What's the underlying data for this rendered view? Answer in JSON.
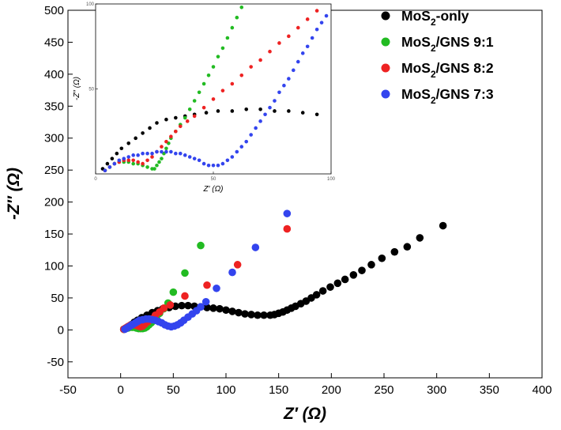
{
  "chart_data": [
    {
      "type": "scatter",
      "xlabel": "Z′ (Ω)",
      "ylabel": "-Z″ (Ω)",
      "xlim": [
        -50,
        400
      ],
      "ylim": [
        -75,
        500
      ],
      "xticks": [
        "-50",
        "0",
        "50",
        "100",
        "150",
        "200",
        "250",
        "300",
        "350",
        "400"
      ],
      "yticks": [
        "-50",
        "0",
        "50",
        "100",
        "150",
        "200",
        "250",
        "300",
        "350",
        "400",
        "450",
        "500"
      ],
      "legend_position": "top-right",
      "series": [
        {
          "name": "MoS2-only",
          "label_main": "MoS",
          "label_sub": "2",
          "label_rest": "-only",
          "color": "#000000",
          "points": [
            [
              3,
              1
            ],
            [
              5,
              3
            ],
            [
              7,
              5
            ],
            [
              10,
              8
            ],
            [
              13,
              12
            ],
            [
              16,
              15
            ],
            [
              20,
              19
            ],
            [
              25,
              23
            ],
            [
              30,
              27
            ],
            [
              35,
              30
            ],
            [
              40,
              33
            ],
            [
              46,
              35
            ],
            [
              52,
              37
            ],
            [
              58,
              38
            ],
            [
              64,
              38
            ],
            [
              70,
              37
            ],
            [
              76,
              36
            ],
            [
              82,
              35
            ],
            [
              88,
              34
            ],
            [
              94,
              33
            ],
            [
              100,
              31
            ],
            [
              106,
              29
            ],
            [
              112,
              27
            ],
            [
              118,
              25
            ],
            [
              124,
              24
            ],
            [
              130,
              23
            ],
            [
              136,
              23
            ],
            [
              142,
              23
            ],
            [
              146,
              24
            ],
            [
              150,
              26
            ],
            [
              154,
              28
            ],
            [
              158,
              31
            ],
            [
              162,
              34
            ],
            [
              166,
              37
            ],
            [
              171,
              41
            ],
            [
              176,
              45
            ],
            [
              181,
              50
            ],
            [
              186,
              55
            ],
            [
              192,
              61
            ],
            [
              199,
              67
            ],
            [
              206,
              73
            ],
            [
              213,
              79
            ],
            [
              221,
              86
            ],
            [
              229,
              93
            ],
            [
              238,
              102
            ],
            [
              248,
              112
            ],
            [
              260,
              122
            ],
            [
              272,
              130
            ],
            [
              284,
              144
            ],
            [
              306,
              163
            ]
          ]
        },
        {
          "name": "MoS2/GNS 9:1",
          "label_main": "MoS",
          "label_sub": "2",
          "label_rest": "/GNS 9:1",
          "color": "#22bb22",
          "points": [
            [
              3,
              1
            ],
            [
              5,
              2
            ],
            [
              7,
              3
            ],
            [
              9,
              4
            ],
            [
              11,
              4
            ],
            [
              13,
              4
            ],
            [
              15,
              3
            ],
            [
              17,
              2
            ],
            [
              19,
              2
            ],
            [
              21,
              2
            ],
            [
              23,
              3
            ],
            [
              25,
              5
            ],
            [
              27,
              8
            ],
            [
              29,
              11
            ],
            [
              31,
              14
            ],
            [
              34,
              19
            ],
            [
              37,
              26
            ],
            [
              41,
              33
            ],
            [
              45,
              42
            ],
            [
              50,
              59
            ],
            [
              61,
              89
            ],
            [
              76,
              132
            ]
          ]
        },
        {
          "name": "MoS2/GNS 8:2",
          "label_main": "MoS",
          "label_sub": "2",
          "label_rest": "/GNS 8:2",
          "color": "#ee2222",
          "points": [
            [
              3,
              1
            ],
            [
              5,
              3
            ],
            [
              7,
              5
            ],
            [
              9,
              7
            ],
            [
              11,
              8
            ],
            [
              13,
              8
            ],
            [
              15,
              7
            ],
            [
              17,
              6
            ],
            [
              19,
              5
            ],
            [
              21,
              6
            ],
            [
              23,
              9
            ],
            [
              26,
              13
            ],
            [
              29,
              17
            ],
            [
              33,
              23
            ],
            [
              37,
              28
            ],
            [
              41,
              34
            ],
            [
              47,
              39
            ],
            [
              61,
              53
            ],
            [
              82,
              70
            ],
            [
              111,
              102
            ],
            [
              158,
              158
            ]
          ]
        },
        {
          "name": "MoS2/GNS 7:3",
          "label_main": "MoS",
          "label_sub": "2",
          "label_rest": "/GNS 7:3",
          "color": "#3344ee",
          "points": [
            [
              4,
              1
            ],
            [
              6,
              3
            ],
            [
              8,
              5
            ],
            [
              10,
              7
            ],
            [
              12,
              9
            ],
            [
              14,
              11
            ],
            [
              16,
              13
            ],
            [
              18,
              15
            ],
            [
              21,
              16
            ],
            [
              24,
              17
            ],
            [
              27,
              17
            ],
            [
              30,
              16
            ],
            [
              33,
              15
            ],
            [
              36,
              13
            ],
            [
              39,
              11
            ],
            [
              42,
              8
            ],
            [
              45,
              6
            ],
            [
              48,
              5
            ],
            [
              51,
              6
            ],
            [
              54,
              8
            ],
            [
              57,
              11
            ],
            [
              60,
              15
            ],
            [
              64,
              20
            ],
            [
              68,
              25
            ],
            [
              72,
              30
            ],
            [
              76,
              36
            ],
            [
              81,
              44
            ],
            [
              91,
              65
            ],
            [
              106,
              90
            ],
            [
              128,
              129
            ],
            [
              158,
              182
            ]
          ]
        }
      ]
    },
    {
      "type": "scatter",
      "xlabel": "Z′ (Ω)",
      "ylabel": "-Z″ (Ω)",
      "xlim": [
        0,
        100
      ],
      "ylim": [
        0,
        100
      ],
      "xticks": [
        "0",
        "50",
        "100"
      ],
      "yticks": [
        "50",
        "100"
      ],
      "series": [
        {
          "name": "MoS2-only",
          "color": "#000000",
          "points": [
            [
              3,
              3
            ],
            [
              5,
              6
            ],
            [
              7,
              9
            ],
            [
              9,
              12
            ],
            [
              11,
              15
            ],
            [
              14,
              18
            ],
            [
              17,
              21
            ],
            [
              20,
              24
            ],
            [
              23,
              27
            ],
            [
              26,
              30
            ],
            [
              30,
              32
            ],
            [
              34,
              33
            ],
            [
              38,
              34
            ],
            [
              42,
              35
            ],
            [
              47,
              36
            ],
            [
              52,
              37
            ],
            [
              58,
              37
            ],
            [
              64,
              38
            ],
            [
              70,
              38
            ],
            [
              76,
              37
            ],
            [
              82,
              37
            ],
            [
              88,
              36
            ],
            [
              94,
              35
            ]
          ]
        },
        {
          "name": "MoS2/GNS 9:1",
          "color": "#22bb22",
          "points": [
            [
              4,
              2
            ],
            [
              6,
              4
            ],
            [
              8,
              6
            ],
            [
              10,
              7
            ],
            [
              12,
              7
            ],
            [
              14,
              7
            ],
            [
              16,
              6
            ],
            [
              18,
              6
            ],
            [
              20,
              5
            ],
            [
              22,
              4
            ],
            [
              24,
              3
            ],
            [
              25,
              3
            ],
            [
              26,
              5
            ],
            [
              27,
              7
            ],
            [
              28,
              9
            ],
            [
              29,
              12
            ],
            [
              30,
              15
            ],
            [
              31,
              18
            ],
            [
              32,
              21
            ],
            [
              34,
              25
            ],
            [
              36,
              29
            ],
            [
              38,
              33
            ],
            [
              40,
              38
            ],
            [
              42,
              43
            ],
            [
              44,
              48
            ],
            [
              46,
              53
            ],
            [
              48,
              58
            ],
            [
              50,
              63
            ],
            [
              52,
              69
            ],
            [
              54,
              74
            ],
            [
              56,
              80
            ],
            [
              58,
              86
            ],
            [
              60,
              92
            ],
            [
              62,
              98
            ]
          ]
        },
        {
          "name": "MoS2/GNS 8:2",
          "color": "#ee2222",
          "points": [
            [
              4,
              2
            ],
            [
              6,
              4
            ],
            [
              8,
              6
            ],
            [
              10,
              7
            ],
            [
              12,
              8
            ],
            [
              14,
              8
            ],
            [
              16,
              8
            ],
            [
              18,
              7
            ],
            [
              20,
              6
            ],
            [
              22,
              8
            ],
            [
              24,
              10
            ],
            [
              26,
              13
            ],
            [
              28,
              16
            ],
            [
              30,
              19
            ],
            [
              32,
              22
            ],
            [
              34,
              25
            ],
            [
              36,
              28
            ],
            [
              39,
              31
            ],
            [
              42,
              34
            ],
            [
              46,
              39
            ],
            [
              50,
              44
            ],
            [
              54,
              49
            ],
            [
              58,
              53
            ],
            [
              62,
              58
            ],
            [
              66,
              63
            ],
            [
              70,
              67
            ],
            [
              74,
              72
            ],
            [
              78,
              77
            ],
            [
              82,
              81
            ],
            [
              86,
              86
            ],
            [
              90,
              91
            ],
            [
              94,
              96
            ]
          ]
        },
        {
          "name": "MoS2/GNS 7:3",
          "color": "#3344ee",
          "points": [
            [
              4,
              2
            ],
            [
              6,
              4
            ],
            [
              8,
              6
            ],
            [
              10,
              8
            ],
            [
              12,
              9
            ],
            [
              14,
              10
            ],
            [
              16,
              11
            ],
            [
              18,
              11
            ],
            [
              20,
              12
            ],
            [
              22,
              12
            ],
            [
              24,
              12
            ],
            [
              26,
              13
            ],
            [
              28,
              13
            ],
            [
              30,
              13
            ],
            [
              32,
              13
            ],
            [
              34,
              12
            ],
            [
              36,
              12
            ],
            [
              38,
              11
            ],
            [
              40,
              10
            ],
            [
              42,
              9
            ],
            [
              44,
              8
            ],
            [
              46,
              6
            ],
            [
              48,
              5
            ],
            [
              50,
              5
            ],
            [
              52,
              5
            ],
            [
              54,
              6
            ],
            [
              56,
              8
            ],
            [
              58,
              10
            ],
            [
              60,
              13
            ],
            [
              62,
              16
            ],
            [
              64,
              19
            ],
            [
              66,
              23
            ],
            [
              68,
              27
            ],
            [
              70,
              31
            ],
            [
              72,
              35
            ],
            [
              74,
              39
            ],
            [
              76,
              43
            ],
            [
              78,
              48
            ],
            [
              80,
              52
            ],
            [
              82,
              56
            ],
            [
              84,
              61
            ],
            [
              86,
              66
            ],
            [
              88,
              71
            ],
            [
              90,
              75
            ],
            [
              92,
              80
            ],
            [
              94,
              85
            ],
            [
              96,
              89
            ],
            [
              98,
              93
            ]
          ]
        }
      ]
    }
  ]
}
